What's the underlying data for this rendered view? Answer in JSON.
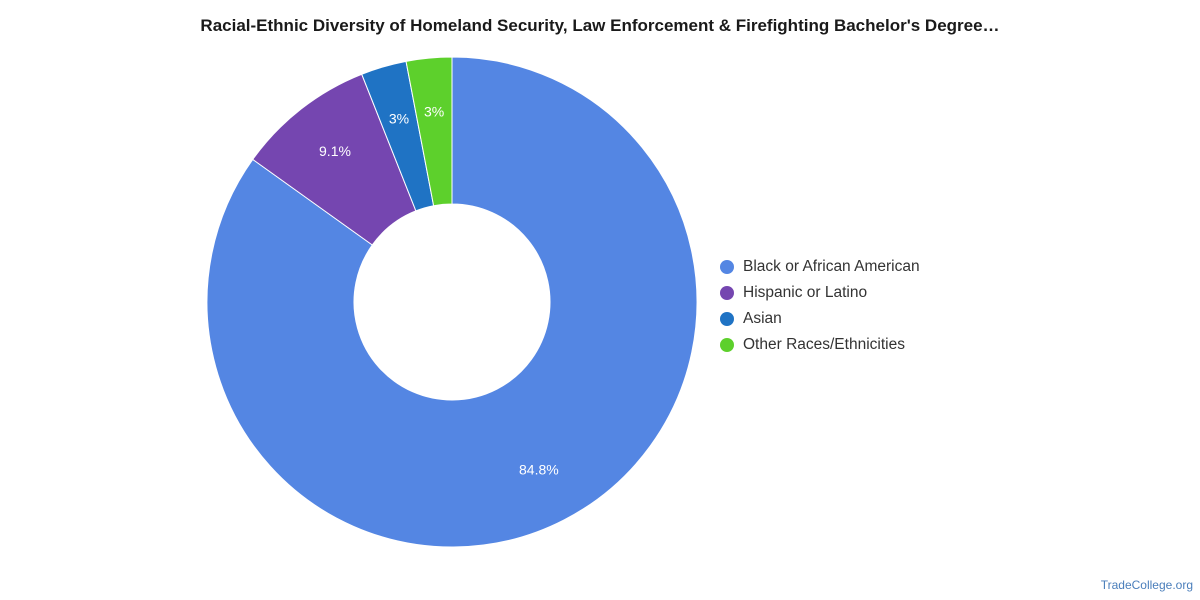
{
  "chart_data": {
    "type": "pie",
    "title": "Racial-Ethnic Diversity of Homeland Security, Law Enforcement & Firefighting Bachelor's Degree…",
    "slices": [
      {
        "name": "Black or African American",
        "value": 84.8,
        "label": "84.8%",
        "color": "#5486e3"
      },
      {
        "name": "Hispanic or Latino",
        "value": 9.1,
        "label": "9.1%",
        "color": "#7546b0"
      },
      {
        "name": "Asian",
        "value": 3.0,
        "label": "3%",
        "color": "#1f73c4"
      },
      {
        "name": "Other Races/Ethnicities",
        "value": 3.0,
        "label": "3%",
        "color": "#5dd02c"
      }
    ],
    "legend_position": "right",
    "donut": true
  },
  "credit": "TradeCollege.org"
}
